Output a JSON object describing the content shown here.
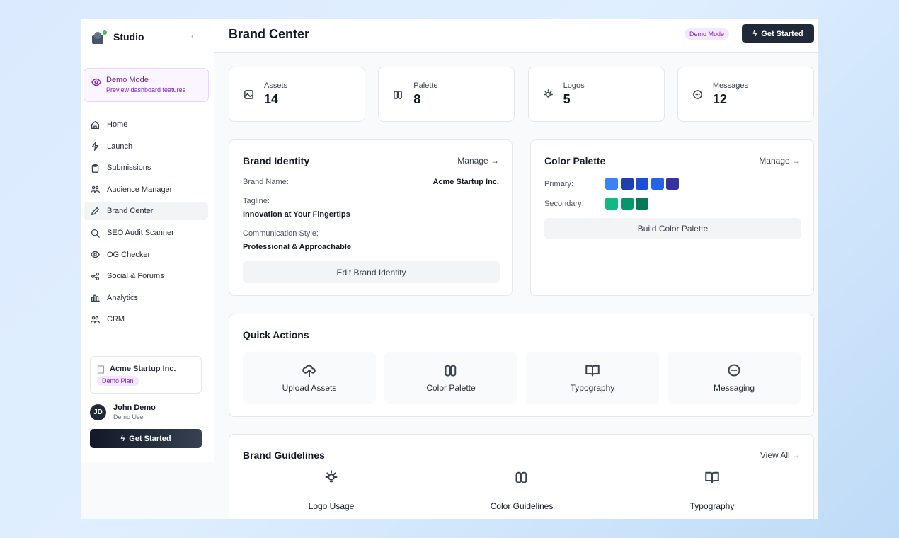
{
  "sidebar": {
    "brand": "Studio",
    "demo": {
      "title": "Demo Mode",
      "subtitle": "Preview dashboard features"
    },
    "nav": [
      "Home",
      "Launch",
      "Submissions",
      "Audience Manager",
      "Brand Center",
      "SEO Audit Scanner",
      "OG Checker",
      "Social & Forums",
      "Analytics",
      "CRM"
    ],
    "workspace": {
      "name": "Acme Startup Inc.",
      "plan": "Demo Plan"
    },
    "user": {
      "initials": "JD",
      "name": "John Demo",
      "role": "Demo User"
    },
    "cta": "Get Started"
  },
  "header": {
    "title": "Brand Center",
    "badge": "Demo Mode",
    "cta": "Get Started"
  },
  "stats": [
    {
      "label": "Assets",
      "value": 14
    },
    {
      "label": "Palette",
      "value": 8
    },
    {
      "label": "Logos",
      "value": 5
    },
    {
      "label": "Messages",
      "value": 12
    }
  ],
  "brand_identity": {
    "title": "Brand Identity",
    "link": "Manage →",
    "fields": [
      {
        "label": "Brand Name:",
        "value": "Acme Startup Inc."
      },
      {
        "label": "Tagline:",
        "value": "Innovation at Your Fingertips"
      },
      {
        "label": "Communication Style:",
        "value": "Professional & Approachable"
      }
    ],
    "button": "Edit Brand Identity"
  },
  "color_palette": {
    "title": "Color Palette",
    "link": "Manage →",
    "rows": [
      {
        "label": "Primary:",
        "colors": [
          "#3b82f6",
          "#1e40af",
          "#1d4ed8",
          "#2563eb",
          "#3730a3"
        ]
      },
      {
        "label": "Secondary:",
        "colors": [
          "#10b981",
          "#059669",
          "#047857"
        ]
      }
    ],
    "button": "Build Color Palette"
  },
  "quick_actions": {
    "title": "Quick Actions",
    "items": [
      "Upload Assets",
      "Color Palette",
      "Typography",
      "Messaging"
    ]
  },
  "guidelines": {
    "title": "Brand Guidelines",
    "link": "View All →",
    "items": [
      "Logo Usage",
      "Color Guidelines",
      "Typography"
    ]
  }
}
